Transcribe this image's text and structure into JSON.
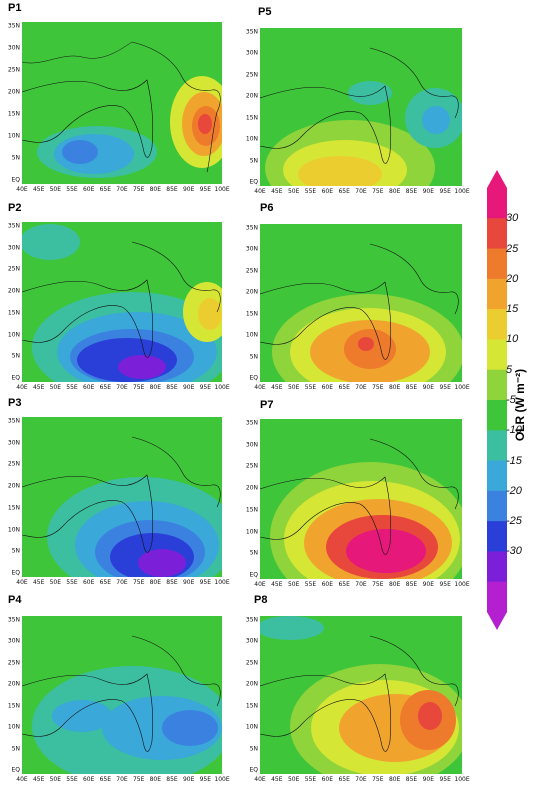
{
  "panels": [
    {
      "label": "P1"
    },
    {
      "label": "P5"
    },
    {
      "label": "P2"
    },
    {
      "label": "P6"
    },
    {
      "label": "P3"
    },
    {
      "label": "P7"
    },
    {
      "label": "P4"
    },
    {
      "label": "P8"
    }
  ],
  "lat_ticks": [
    "35N",
    "30N",
    "25N",
    "20N",
    "15N",
    "10N",
    "5N",
    "EQ"
  ],
  "lon_ticks": [
    "40E",
    "45E",
    "50E",
    "55E",
    "60E",
    "65E",
    "70E",
    "75E",
    "80E",
    "85E",
    "90E",
    "95E",
    "100E"
  ],
  "colorbar": {
    "title": "OLR (W m⁻²)",
    "ticks": [
      "30",
      "25",
      "20",
      "15",
      "10",
      "5",
      "-5",
      "-10",
      "-15",
      "-20",
      "-25",
      "-30"
    ],
    "colors": [
      "#e6197a",
      "#e8473c",
      "#ee7a2c",
      "#f0a42e",
      "#eccd30",
      "#d6e635",
      "#8fd43a",
      "#3fc53a",
      "#3bbfa0",
      "#3aa8d8",
      "#3b82e0",
      "#2a3fd8",
      "#7c1fd9",
      "#b41fd0"
    ]
  }
}
